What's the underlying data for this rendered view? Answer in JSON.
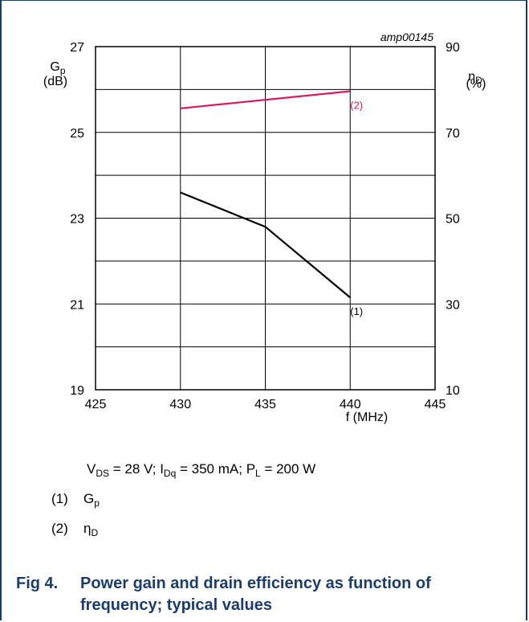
{
  "chart_data": {
    "type": "line",
    "code": "amp00145",
    "xlabel": "f (MHz)",
    "x_ticks": [
      "425",
      "430",
      "435",
      "440",
      "445"
    ],
    "xlim": [
      425,
      445
    ],
    "y_left": {
      "label_main": "G",
      "label_sub": "p",
      "unit": "(dB)",
      "ticks": [
        "19",
        "21",
        "23",
        "25",
        "27"
      ],
      "lim": [
        19,
        27
      ]
    },
    "y_right": {
      "label_main": "η",
      "label_sub": "D",
      "unit": "(%)",
      "ticks": [
        "10",
        "30",
        "50",
        "70",
        "90"
      ],
      "lim": [
        10,
        90
      ]
    },
    "series": [
      {
        "name": "(1)",
        "axis": "left",
        "color": "#000000",
        "x": [
          430,
          435,
          440
        ],
        "y": [
          23.6,
          22.8,
          21.15
        ]
      },
      {
        "name": "(2)",
        "axis": "right",
        "color": "#d81b60",
        "x": [
          430,
          440
        ],
        "y": [
          75.6,
          79.6
        ]
      }
    ]
  },
  "conditions": {
    "v_main": "V",
    "v_sub": "DS",
    "v_val": " = 28 V; ",
    "i_main": "I",
    "i_sub": "Dq",
    "i_val": " = 350 mA; ",
    "p_main": "P",
    "p_sub": "L",
    "p_val": " = 200 W"
  },
  "legend": [
    {
      "num": "(1)",
      "main": "G",
      "sub": "p"
    },
    {
      "num": "(2)",
      "main": "η",
      "sub": "D"
    }
  ],
  "figure": {
    "number": "Fig 4.",
    "caption": "Power gain and drain efficiency as function of frequency; typical values"
  }
}
